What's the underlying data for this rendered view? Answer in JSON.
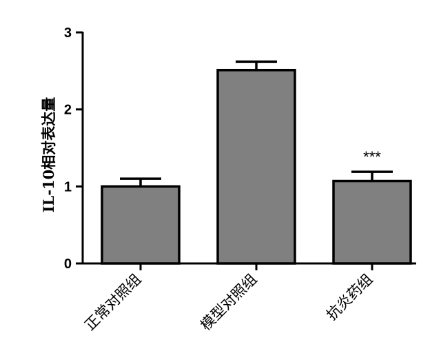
{
  "chart_data": {
    "type": "bar",
    "title": "",
    "xlabel": "",
    "ylabel": "IL-10相对表达量",
    "categories": [
      "正常对照组",
      "模型对照组",
      "抗炎药组"
    ],
    "values": [
      1.0,
      2.51,
      1.07
    ],
    "errors": [
      0.1,
      0.11,
      0.12
    ],
    "annotations": [
      "",
      "",
      "***"
    ],
    "ylim": [
      0,
      3
    ],
    "yticks": [
      0,
      1,
      2,
      3
    ],
    "grid": false,
    "bar_color": "#808080",
    "edge_color": "#000000"
  }
}
